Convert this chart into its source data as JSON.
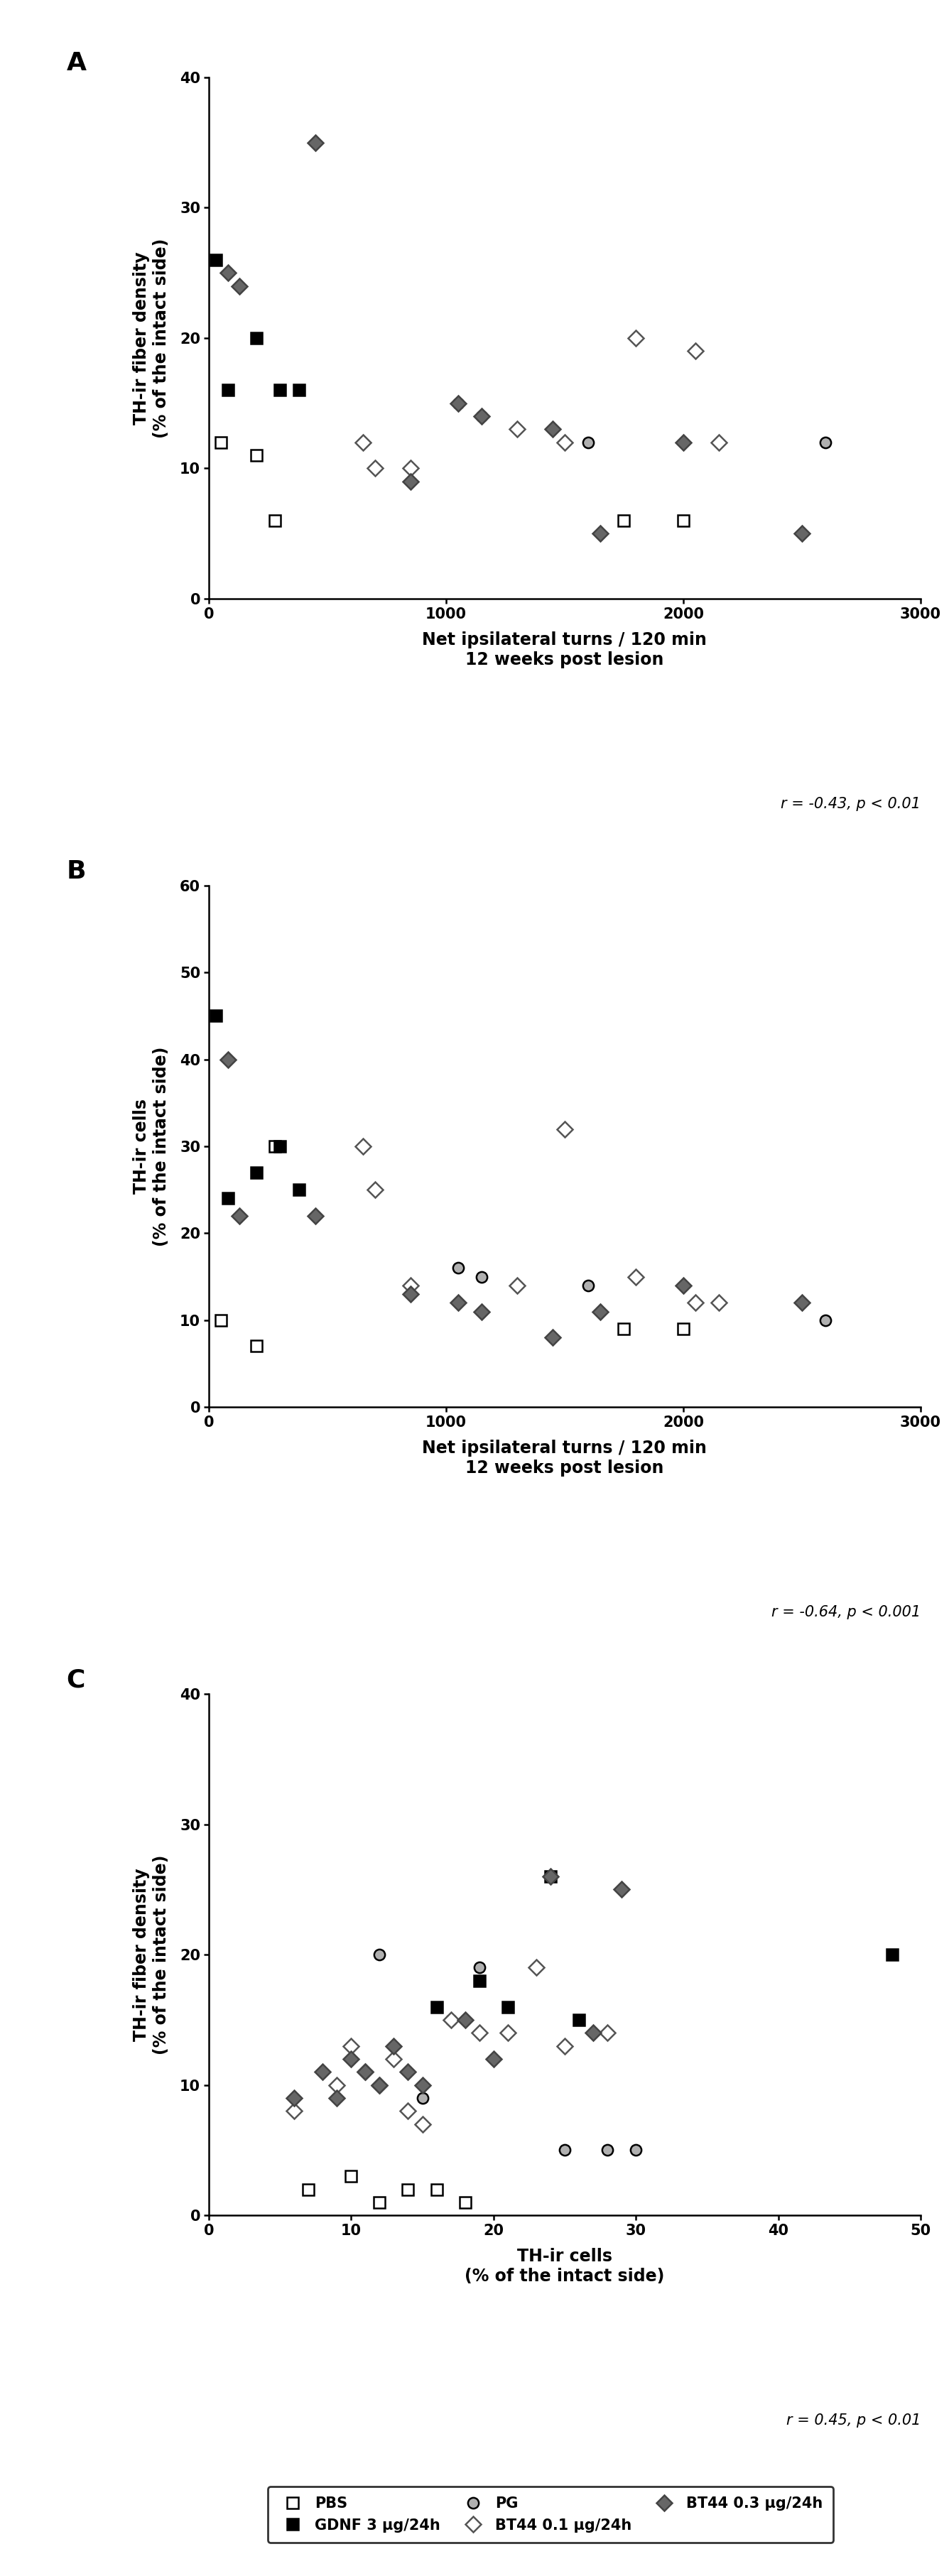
{
  "panel_A": {
    "PBS": {
      "x": [
        50,
        200,
        280,
        1750,
        2000
      ],
      "y": [
        12,
        11,
        6,
        6,
        6
      ]
    },
    "GDNF": {
      "x": [
        30,
        80,
        200,
        300,
        380
      ],
      "y": [
        26,
        16,
        20,
        16,
        16
      ]
    },
    "PG": {
      "x": [
        1050,
        1150,
        1600,
        2600
      ],
      "y": [
        15,
        14,
        12,
        12
      ]
    },
    "BT44_01": {
      "x": [
        650,
        700,
        850,
        1300,
        1500,
        1800,
        2050,
        2150
      ],
      "y": [
        12,
        10,
        10,
        13,
        12,
        20,
        19,
        12
      ]
    },
    "BT44_03": {
      "x": [
        80,
        130,
        450,
        850,
        1050,
        1150,
        1450,
        1650,
        2000,
        2500
      ],
      "y": [
        25,
        24,
        35,
        9,
        15,
        14,
        13,
        5,
        12,
        5
      ]
    },
    "xlabel": "Net ipsilateral turns / 120 min\n12 weeks post lesion",
    "ylabel": "TH-ir fiber density\n(% of the intact side)",
    "xlim": [
      0,
      3000
    ],
    "ylim": [
      0,
      40
    ],
    "xticks": [
      0,
      1000,
      2000,
      3000
    ],
    "yticks": [
      0,
      10,
      20,
      30,
      40
    ],
    "r_text": "r = -0.43, p < 0.01"
  },
  "panel_B": {
    "PBS": {
      "x": [
        50,
        200,
        280,
        1750,
        2000
      ],
      "y": [
        10,
        7,
        30,
        9,
        9
      ]
    },
    "GDNF": {
      "x": [
        30,
        80,
        200,
        300,
        380
      ],
      "y": [
        45,
        24,
        27,
        30,
        25
      ]
    },
    "PG": {
      "x": [
        1050,
        1150,
        1600,
        2600
      ],
      "y": [
        16,
        15,
        14,
        10
      ]
    },
    "BT44_01": {
      "x": [
        650,
        700,
        850,
        1300,
        1500,
        1800,
        2050,
        2150
      ],
      "y": [
        30,
        25,
        14,
        14,
        32,
        15,
        12,
        12
      ]
    },
    "BT44_03": {
      "x": [
        80,
        130,
        450,
        850,
        1050,
        1150,
        1450,
        1650,
        2000,
        2500
      ],
      "y": [
        40,
        22,
        22,
        13,
        12,
        11,
        8,
        11,
        14,
        12
      ]
    },
    "xlabel": "Net ipsilateral turns / 120 min\n12 weeks post lesion",
    "ylabel": "TH-ir cells\n(% of the intact side)",
    "xlim": [
      0,
      3000
    ],
    "ylim": [
      0,
      60
    ],
    "xticks": [
      0,
      1000,
      2000,
      3000
    ],
    "yticks": [
      0,
      10,
      20,
      30,
      40,
      50,
      60
    ],
    "r_text": "r = -0.64, p < 0.001"
  },
  "panel_C": {
    "PBS": {
      "x": [
        7,
        10,
        12,
        14,
        16,
        18
      ],
      "y": [
        2,
        3,
        1,
        2,
        2,
        1
      ]
    },
    "GDNF": {
      "x": [
        16,
        19,
        21,
        24,
        26,
        48
      ],
      "y": [
        16,
        18,
        16,
        26,
        15,
        20
      ]
    },
    "PG": {
      "x": [
        12,
        15,
        17,
        19,
        25,
        28,
        30
      ],
      "y": [
        20,
        9,
        15,
        19,
        5,
        5,
        5
      ]
    },
    "BT44_01": {
      "x": [
        6,
        9,
        10,
        11,
        12,
        13,
        14,
        15,
        17,
        19,
        21,
        23,
        25,
        28
      ],
      "y": [
        8,
        10,
        13,
        11,
        10,
        12,
        8,
        7,
        15,
        14,
        14,
        19,
        13,
        14
      ]
    },
    "BT44_03": {
      "x": [
        6,
        8,
        9,
        10,
        11,
        12,
        13,
        14,
        15,
        18,
        20,
        24,
        27,
        29
      ],
      "y": [
        9,
        11,
        9,
        12,
        11,
        10,
        13,
        11,
        10,
        15,
        12,
        26,
        14,
        25
      ]
    },
    "xlabel": "TH-ir cells\n(% of the intact side)",
    "ylabel": "TH-ir fiber density\n(% of the intact side)",
    "xlim": [
      0,
      50
    ],
    "ylim": [
      0,
      40
    ],
    "xticks": [
      0,
      10,
      20,
      30,
      40,
      50
    ],
    "yticks": [
      0,
      10,
      20,
      30,
      40
    ],
    "r_text": "r = 0.45, p < 0.01"
  },
  "legend_labels": {
    "PBS": "PBS",
    "GDNF": "GDNF 3 μg/24h",
    "PG": "PG",
    "BT44_01": "BT44 0.1 μg/24h",
    "BT44_03": "BT44 0.3 μg/24h"
  },
  "panel_labels": [
    "A",
    "B",
    "C"
  ]
}
